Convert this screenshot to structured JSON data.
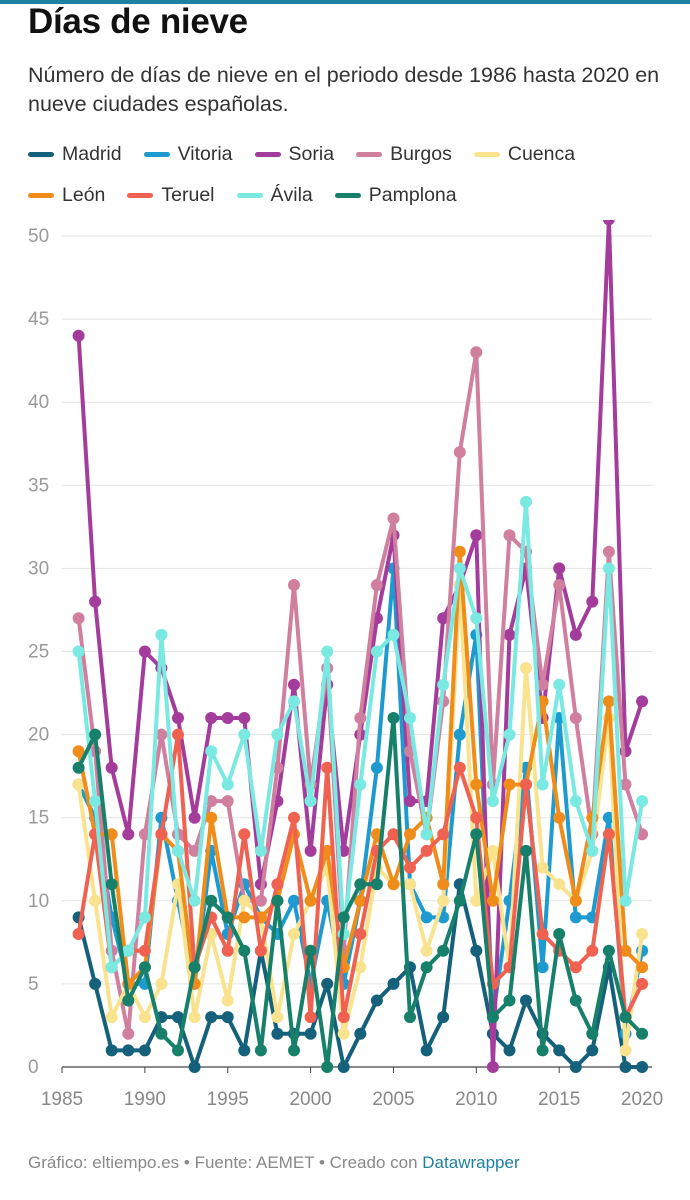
{
  "title": "Días de nieve",
  "subtitle": "Número de días de nieve en el periodo desde 1986 hasta 2020 en nueve ciudades españolas.",
  "footer": {
    "prefix": "Gráfico: eltiempo.es • Fuente: AEMET • Creado con ",
    "link": "Datawrapper"
  },
  "chart_data": {
    "type": "line",
    "title": "Días de nieve",
    "xlabel": "",
    "ylabel": "",
    "xlim": [
      1986,
      2020
    ],
    "ylim": [
      0,
      50
    ],
    "x_ticks": [
      1985,
      1990,
      1995,
      2000,
      2005,
      2010,
      2015,
      2020
    ],
    "y_ticks": [
      0,
      5,
      10,
      15,
      20,
      25,
      30,
      35,
      40,
      45,
      50
    ],
    "grid": true,
    "legend_position": "top",
    "x": [
      1986,
      1987,
      1988,
      1989,
      1990,
      1991,
      1992,
      1993,
      1994,
      1995,
      1996,
      1997,
      1998,
      1999,
      2000,
      2001,
      2002,
      2003,
      2004,
      2005,
      2006,
      2007,
      2008,
      2009,
      2010,
      2011,
      2012,
      2013,
      2014,
      2015,
      2016,
      2017,
      2018,
      2019,
      2020
    ],
    "series": [
      {
        "name": "Madrid",
        "color": "#15607a",
        "values": [
          9,
          5,
          1,
          1,
          1,
          3,
          3,
          0,
          3,
          3,
          1,
          7,
          2,
          2,
          2,
          5,
          0,
          2,
          4,
          5,
          6,
          1,
          3,
          11,
          7,
          2,
          1,
          4,
          2,
          1,
          0,
          1,
          6,
          0,
          0
        ]
      },
      {
        "name": "Vitoria",
        "color": "#1d9bd1",
        "values": [
          17,
          15,
          9,
          5,
          5,
          15,
          10,
          5,
          13,
          8,
          11,
          9,
          8,
          10,
          5,
          10,
          5,
          10,
          18,
          30,
          11,
          9,
          9,
          20,
          26,
          3,
          10,
          18,
          6,
          21,
          9,
          9,
          15,
          2,
          7
        ]
      },
      {
        "name": "Soria",
        "color": "#a43c9c",
        "values": [
          44,
          28,
          18,
          14,
          25,
          24,
          21,
          15,
          21,
          21,
          21,
          11,
          16,
          23,
          13,
          23,
          13,
          20,
          27,
          32,
          16,
          16,
          27,
          29,
          32,
          0,
          26,
          30,
          21,
          30,
          26,
          28,
          51,
          19,
          22
        ]
      },
      {
        "name": "Burgos",
        "color": "#d07f9f",
        "values": [
          27,
          19,
          7,
          2,
          14,
          20,
          14,
          13,
          16,
          16,
          10,
          10,
          18,
          29,
          17,
          24,
          7,
          21,
          29,
          33,
          19,
          14,
          22,
          37,
          43,
          17,
          32,
          31,
          23,
          29,
          21,
          14,
          31,
          17,
          14
        ]
      },
      {
        "name": "Cuenca",
        "color": "#fae38f",
        "values": [
          17,
          10,
          3,
          5,
          3,
          5,
          11,
          3,
          8,
          4,
          10,
          9,
          3,
          8,
          10,
          12,
          2,
          6,
          12,
          11,
          11,
          7,
          10,
          29,
          10,
          13,
          6,
          24,
          12,
          11,
          10,
          13,
          21,
          1,
          8
        ]
      },
      {
        "name": "León",
        "color": "#f08c1a",
        "values": [
          19,
          14,
          14,
          5,
          6,
          14,
          13,
          5,
          15,
          9,
          9,
          9,
          10,
          14,
          10,
          13,
          6,
          10,
          14,
          11,
          14,
          15,
          11,
          31,
          17,
          10,
          17,
          17,
          22,
          15,
          10,
          15,
          22,
          7,
          6
        ]
      },
      {
        "name": "Teruel",
        "color": "#ef6151",
        "values": [
          8,
          14,
          6,
          7,
          7,
          14,
          20,
          6,
          9,
          7,
          14,
          7,
          11,
          15,
          3,
          18,
          3,
          8,
          13,
          14,
          12,
          13,
          14,
          18,
          15,
          5,
          6,
          17,
          8,
          7,
          6,
          7,
          14,
          3,
          5
        ]
      },
      {
        "name": "Ávila",
        "color": "#7ae9e1",
        "values": [
          25,
          16,
          6,
          7,
          9,
          26,
          13,
          10,
          19,
          17,
          20,
          13,
          20,
          22,
          16,
          25,
          8,
          17,
          25,
          26,
          21,
          14,
          23,
          30,
          27,
          16,
          20,
          34,
          17,
          23,
          16,
          13,
          30,
          10,
          16
        ]
      },
      {
        "name": "Pamplona",
        "color": "#17806b",
        "values": [
          18,
          20,
          11,
          4,
          6,
          2,
          1,
          6,
          10,
          9,
          7,
          1,
          10,
          1,
          7,
          0,
          9,
          11,
          11,
          21,
          3,
          6,
          7,
          10,
          14,
          3,
          4,
          13,
          1,
          8,
          4,
          2,
          7,
          3,
          2
        ]
      }
    ]
  }
}
